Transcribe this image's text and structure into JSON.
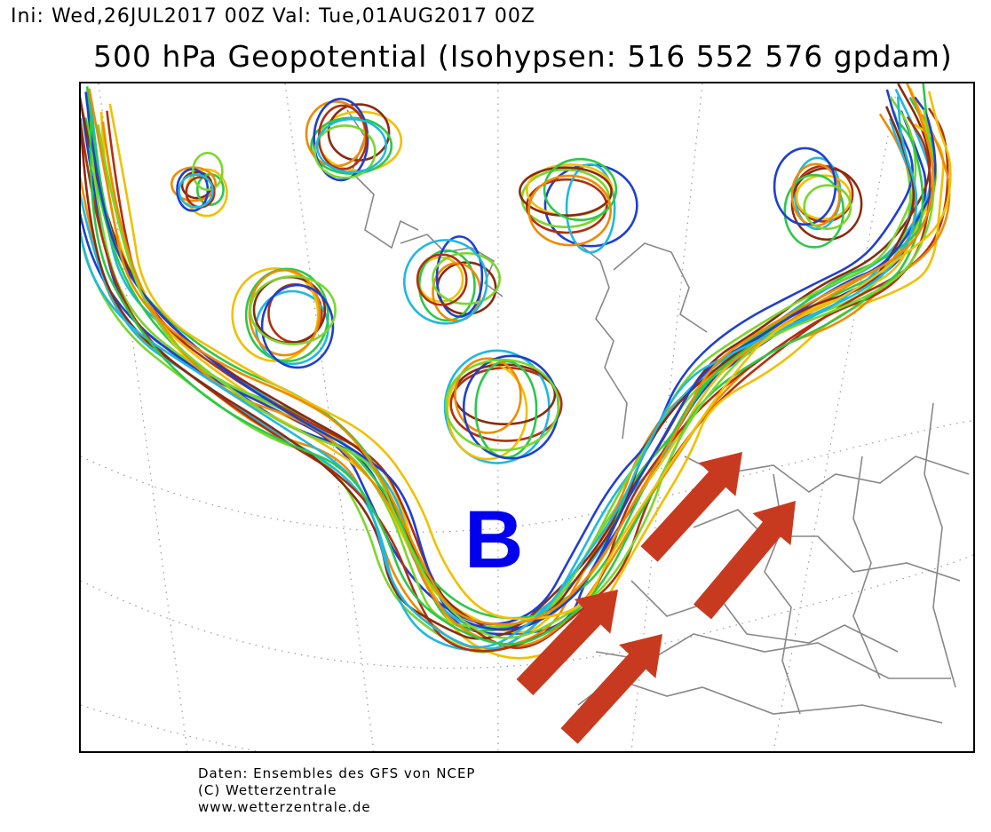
{
  "header": {
    "init_line": "Ini: Wed,26JUL2017 00Z Val: Tue,01AUG2017 00Z",
    "title": "500 hPa Geopotential (Isohypsen: 516 552 576 gpdam)"
  },
  "map": {
    "annotation_letter": "B",
    "annotation_color": "#0000ee",
    "arrow_color": "#c83a20",
    "arrow_count": 4,
    "isohypse_levels_gpdam": [
      516,
      552,
      576
    ],
    "member_colors": [
      "#1f3fd0",
      "#1fb8e0",
      "#2cc84a",
      "#7ad62c",
      "#f0c000",
      "#f08a00",
      "#b03010",
      "#8a2a10"
    ],
    "coastline_color": "#888888",
    "graticule_style": "dotted"
  },
  "footer": {
    "line1": "Daten: Ensembles des GFS von NCEP",
    "line2": "(C) Wetterzentrale",
    "line3": "www.wetterzentrale.de"
  }
}
